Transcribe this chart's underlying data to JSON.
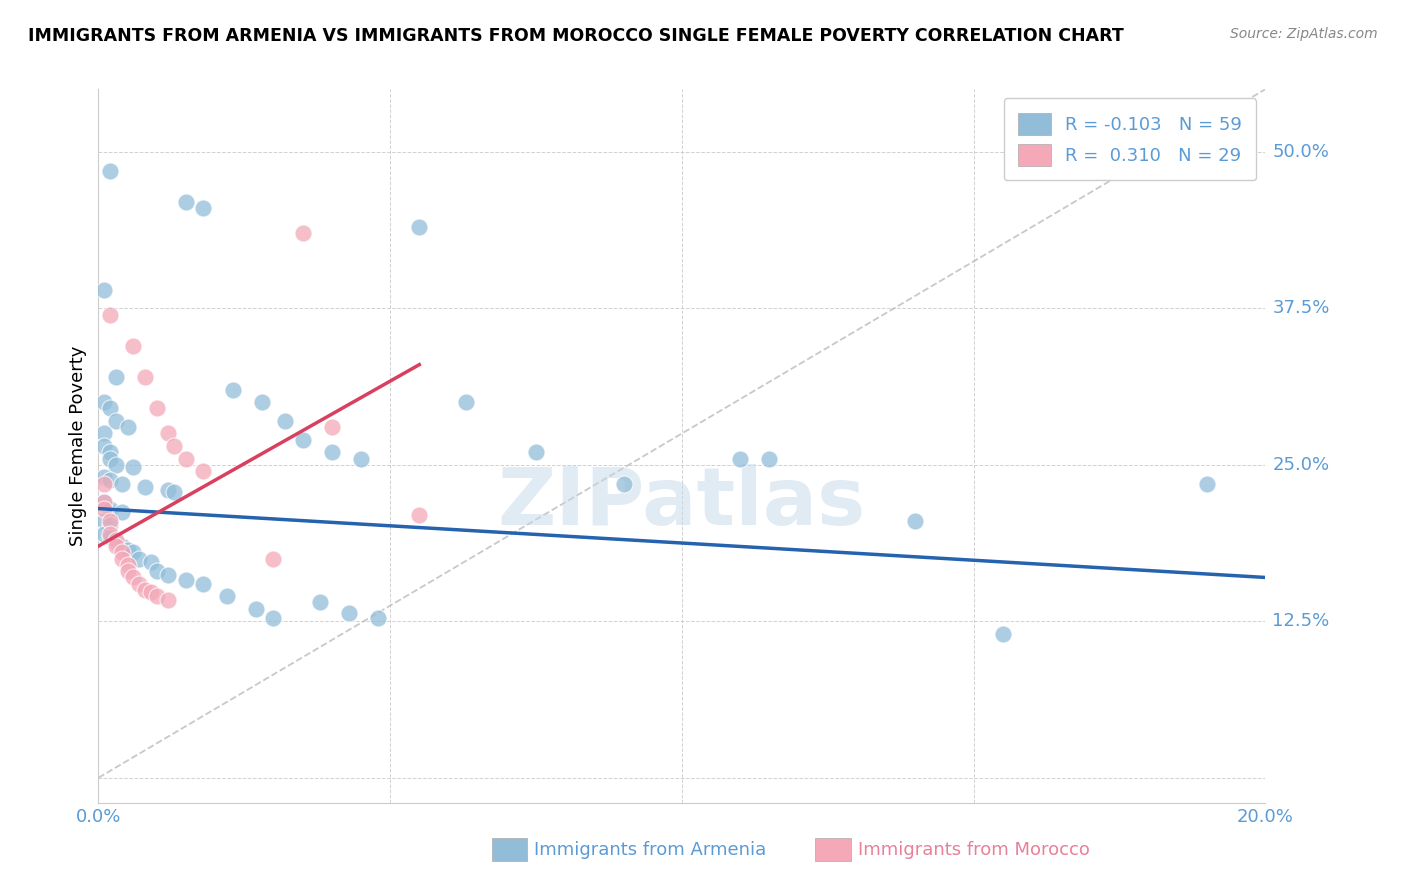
{
  "title": "IMMIGRANTS FROM ARMENIA VS IMMIGRANTS FROM MOROCCO SINGLE FEMALE POVERTY CORRELATION CHART",
  "source": "Source: ZipAtlas.com",
  "ylabel": "Single Female Poverty",
  "ytick_values": [
    0.0,
    0.125,
    0.25,
    0.375,
    0.5
  ],
  "ytick_labels": [
    "",
    "12.5%",
    "25.0%",
    "37.5%",
    "50.0%"
  ],
  "xtick_values": [
    0.0,
    0.05,
    0.1,
    0.15,
    0.2
  ],
  "xtick_labels": [
    "0.0%",
    "",
    "",
    "",
    "20.0%"
  ],
  "xlim": [
    0.0,
    0.2
  ],
  "ylim": [
    -0.02,
    0.55
  ],
  "legend_r_armenia": "-0.103",
  "legend_n_armenia": "59",
  "legend_r_morocco": "0.310",
  "legend_n_morocco": "29",
  "color_armenia": "#92BDD9",
  "color_morocco": "#F4A8B8",
  "color_blue_line": "#2563AE",
  "color_pink_line": "#D94060",
  "color_diag_line": "#BBBBBB",
  "color_tick": "#5B9BD5",
  "watermark": "ZIPatlas",
  "armenia_scatter": [
    [
      0.002,
      0.485
    ],
    [
      0.015,
      0.46
    ],
    [
      0.018,
      0.455
    ],
    [
      0.055,
      0.44
    ],
    [
      0.001,
      0.39
    ],
    [
      0.003,
      0.32
    ],
    [
      0.023,
      0.31
    ],
    [
      0.063,
      0.3
    ],
    [
      0.001,
      0.3
    ],
    [
      0.002,
      0.295
    ],
    [
      0.003,
      0.285
    ],
    [
      0.028,
      0.3
    ],
    [
      0.032,
      0.285
    ],
    [
      0.005,
      0.28
    ],
    [
      0.001,
      0.275
    ],
    [
      0.035,
      0.27
    ],
    [
      0.075,
      0.26
    ],
    [
      0.001,
      0.265
    ],
    [
      0.002,
      0.26
    ],
    [
      0.04,
      0.26
    ],
    [
      0.002,
      0.255
    ],
    [
      0.045,
      0.255
    ],
    [
      0.003,
      0.25
    ],
    [
      0.006,
      0.248
    ],
    [
      0.001,
      0.24
    ],
    [
      0.002,
      0.238
    ],
    [
      0.004,
      0.235
    ],
    [
      0.09,
      0.235
    ],
    [
      0.008,
      0.232
    ],
    [
      0.012,
      0.23
    ],
    [
      0.013,
      0.228
    ],
    [
      0.001,
      0.22
    ],
    [
      0.002,
      0.215
    ],
    [
      0.004,
      0.212
    ],
    [
      0.001,
      0.205
    ],
    [
      0.002,
      0.202
    ],
    [
      0.14,
      0.205
    ],
    [
      0.001,
      0.195
    ],
    [
      0.002,
      0.192
    ],
    [
      0.003,
      0.188
    ],
    [
      0.004,
      0.185
    ],
    [
      0.005,
      0.182
    ],
    [
      0.006,
      0.18
    ],
    [
      0.007,
      0.175
    ],
    [
      0.009,
      0.172
    ],
    [
      0.01,
      0.165
    ],
    [
      0.012,
      0.162
    ],
    [
      0.015,
      0.158
    ],
    [
      0.018,
      0.155
    ],
    [
      0.022,
      0.145
    ],
    [
      0.027,
      0.135
    ],
    [
      0.03,
      0.128
    ],
    [
      0.038,
      0.14
    ],
    [
      0.043,
      0.132
    ],
    [
      0.048,
      0.128
    ],
    [
      0.11,
      0.255
    ],
    [
      0.115,
      0.255
    ],
    [
      0.19,
      0.235
    ],
    [
      0.155,
      0.115
    ]
  ],
  "morocco_scatter": [
    [
      0.035,
      0.435
    ],
    [
      0.002,
      0.37
    ],
    [
      0.006,
      0.345
    ],
    [
      0.008,
      0.32
    ],
    [
      0.01,
      0.295
    ],
    [
      0.012,
      0.275
    ],
    [
      0.013,
      0.265
    ],
    [
      0.015,
      0.255
    ],
    [
      0.018,
      0.245
    ],
    [
      0.04,
      0.28
    ],
    [
      0.001,
      0.235
    ],
    [
      0.001,
      0.22
    ],
    [
      0.001,
      0.215
    ],
    [
      0.002,
      0.205
    ],
    [
      0.002,
      0.195
    ],
    [
      0.003,
      0.19
    ],
    [
      0.003,
      0.185
    ],
    [
      0.004,
      0.18
    ],
    [
      0.004,
      0.175
    ],
    [
      0.005,
      0.17
    ],
    [
      0.005,
      0.165
    ],
    [
      0.006,
      0.16
    ],
    [
      0.007,
      0.155
    ],
    [
      0.008,
      0.15
    ],
    [
      0.009,
      0.148
    ],
    [
      0.01,
      0.145
    ],
    [
      0.012,
      0.142
    ],
    [
      0.055,
      0.21
    ],
    [
      0.03,
      0.175
    ]
  ],
  "armenia_line_x": [
    0.0,
    0.2
  ],
  "armenia_line_y": [
    0.215,
    0.16
  ],
  "morocco_line_x": [
    0.0,
    0.055
  ],
  "morocco_line_y": [
    0.185,
    0.33
  ],
  "diag_line_x": [
    0.0,
    0.2
  ],
  "diag_line_y": [
    0.0,
    0.55
  ]
}
